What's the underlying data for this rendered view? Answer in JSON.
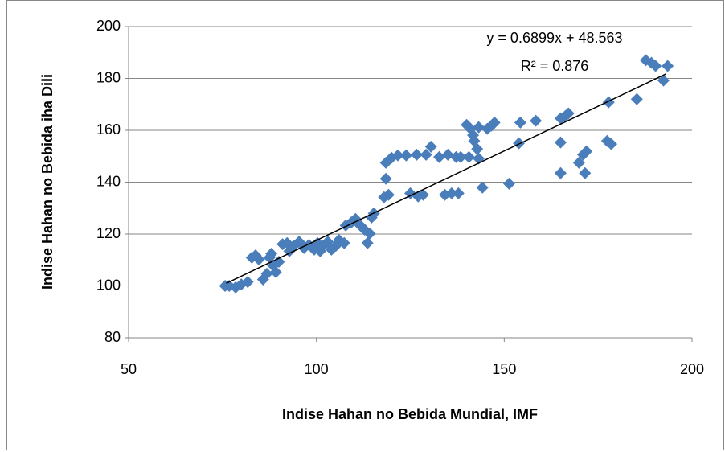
{
  "chart_data": {
    "type": "scatter",
    "xlabel": "Indise Hahan no Bebida Mundial, IMF",
    "ylabel": "Indise Hahan no Bebida iha  Dili",
    "annotations": [
      "y = 0.6899x + 48.563",
      "R² = 0.876"
    ],
    "color": "#4a7ebb",
    "xlim": [
      50,
      200
    ],
    "xticks": [
      50,
      100,
      150,
      200
    ],
    "ylim": [
      80,
      200
    ],
    "yticks": [
      80,
      100,
      120,
      140,
      160,
      180,
      200
    ],
    "grid": true,
    "trendline": {
      "x": [
        76,
        193
      ],
      "y": [
        101.0,
        181.7
      ]
    },
    "x": [
      75.7,
      76.8,
      78.5,
      80,
      81.7,
      82.8,
      83.8,
      84.7,
      85.8,
      86.8,
      87.5,
      88,
      88.5,
      89.2,
      90,
      91,
      92.2,
      92.8,
      94,
      95.4,
      96.7,
      98,
      99.4,
      100.3,
      101,
      101.8,
      103,
      104,
      105.2,
      106,
      107.4,
      107.8,
      109.3,
      110.4,
      111.7,
      112.8,
      113.6,
      114.2,
      114.7,
      115.3,
      118,
      118.5,
      119.2,
      118.5,
      120,
      121.7,
      123.9,
      125,
      126.7,
      127.1,
      128.4,
      129.2,
      130.5,
      132.7,
      134.2,
      135,
      136,
      137.2,
      137.8,
      138.4,
      140,
      140.6,
      141,
      141.7,
      142,
      142.8,
      143.2,
      143.2,
      144.2,
      145.5,
      146.6,
      147.4,
      151.3,
      153.9,
      154.3,
      158.4,
      165,
      165,
      165,
      166.3,
      167.1,
      169.9,
      171,
      171.5,
      171.9,
      177.4,
      177.8,
      178.5,
      185.3,
      187.7,
      189.2,
      190.3,
      192.4,
      193.5
    ],
    "values": [
      100,
      100,
      99.4,
      100.6,
      101.5,
      110.9,
      111.8,
      110.2,
      102.5,
      104.7,
      110.9,
      112.4,
      107.8,
      105.3,
      109.3,
      116.1,
      116.5,
      113.4,
      115.5,
      117,
      114.6,
      115.8,
      114,
      116.5,
      113.4,
      115.5,
      117,
      114,
      115.5,
      117.7,
      116.5,
      123.3,
      124.5,
      125.8,
      123.3,
      121.7,
      116.5,
      120.2,
      126.4,
      128,
      134.2,
      141.3,
      135.1,
      147.5,
      149.4,
      150.3,
      150.3,
      135.7,
      150.6,
      134.5,
      135.1,
      150.6,
      153.7,
      149.7,
      135.1,
      150.6,
      135.7,
      149.7,
      135.7,
      149.7,
      162.1,
      149.7,
      160.6,
      158.1,
      155.9,
      152.8,
      161.2,
      149.1,
      137.9,
      160.6,
      161.8,
      163,
      139.4,
      155,
      163,
      163.7,
      143.5,
      155.3,
      164.6,
      165.5,
      166.5,
      147.5,
      150.6,
      143.5,
      151.9,
      155.9,
      170.8,
      154.7,
      172,
      187,
      186,
      184.8,
      179.2,
      184.8
    ]
  }
}
